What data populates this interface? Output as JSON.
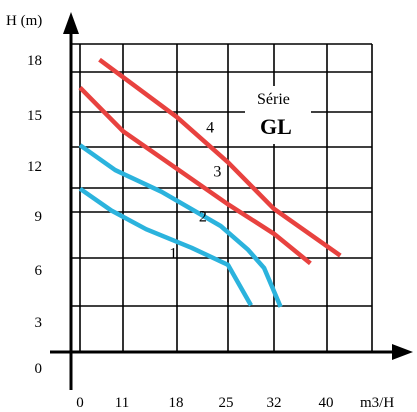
{
  "chart_data": {
    "type": "line",
    "ylabel": "H (m)",
    "xlabel": "m3/H",
    "x_ticks": [
      "0",
      "11",
      "18",
      "25",
      "32",
      "40"
    ],
    "y_ticks": [
      "0",
      "3",
      "6",
      "9",
      "12",
      "15",
      "18"
    ],
    "x_tick_values": [
      0,
      11,
      18,
      25,
      32,
      40
    ],
    "xlim": [
      -3,
      48
    ],
    "ylim": [
      -0.3,
      20.5
    ],
    "grid": true,
    "annotation": {
      "line1": "Série",
      "line2": "GL"
    },
    "series": [
      {
        "name": "1",
        "color": "#2bb3dd",
        "points": [
          [
            0,
            10.5
          ],
          [
            8,
            9.1
          ],
          [
            14,
            7.9
          ],
          [
            20,
            6.7
          ],
          [
            25,
            5.6
          ],
          [
            28.5,
            3.0
          ]
        ]
      },
      {
        "name": "2",
        "color": "#2bb3dd",
        "points": [
          [
            0,
            13.3
          ],
          [
            9,
            11.7
          ],
          [
            16,
            10.3
          ],
          [
            24,
            8.1
          ],
          [
            28,
            6.6
          ],
          [
            30.5,
            5.4
          ],
          [
            33,
            2.9
          ]
        ]
      },
      {
        "name": "3",
        "color": "#e8423f",
        "points": [
          [
            0,
            17.0
          ],
          [
            11,
            14.2
          ],
          [
            25,
            9.5
          ],
          [
            32,
            7.6
          ],
          [
            37.5,
            5.7
          ]
        ]
      },
      {
        "name": "4",
        "color": "#e8423f",
        "points": [
          [
            5,
            18.8
          ],
          [
            18,
            15.1
          ],
          [
            25,
            12.2
          ],
          [
            32,
            9.2
          ],
          [
            42,
            6.2
          ]
        ]
      }
    ],
    "curve_label_points": [
      [
        17,
        6.0
      ],
      [
        21,
        8.4
      ],
      [
        23,
        11.3
      ],
      [
        22,
        14.1
      ]
    ]
  }
}
